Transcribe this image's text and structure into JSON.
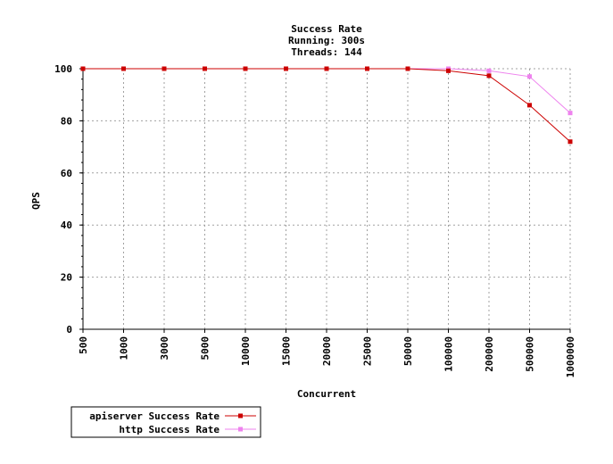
{
  "chart_data": {
    "type": "line",
    "title_lines": [
      "Success Rate",
      "Running: 300s",
      "Threads: 144"
    ],
    "xlabel": "Concurrent",
    "ylabel": "QPS",
    "categories": [
      "500",
      "1000",
      "3000",
      "5000",
      "10000",
      "15000",
      "20000",
      "25000",
      "50000",
      "100000",
      "200000",
      "500000",
      "1000000"
    ],
    "ylim": [
      0,
      100
    ],
    "yticks": [
      "0",
      "20",
      "40",
      "60",
      "80",
      "100"
    ],
    "grid": true,
    "legend_position": "bottom-left",
    "series": [
      {
        "name": "apiserver Success Rate",
        "color": "#cc0000",
        "values": [
          100,
          100,
          100,
          100,
          100,
          100,
          100,
          100,
          100,
          99.2,
          97.3,
          86,
          72
        ]
      },
      {
        "name": "http Success Rate",
        "color": "#ee82ee",
        "values": [
          100,
          100,
          100,
          100,
          100,
          100,
          100,
          100,
          100,
          100,
          99.2,
          97,
          83
        ]
      }
    ]
  }
}
